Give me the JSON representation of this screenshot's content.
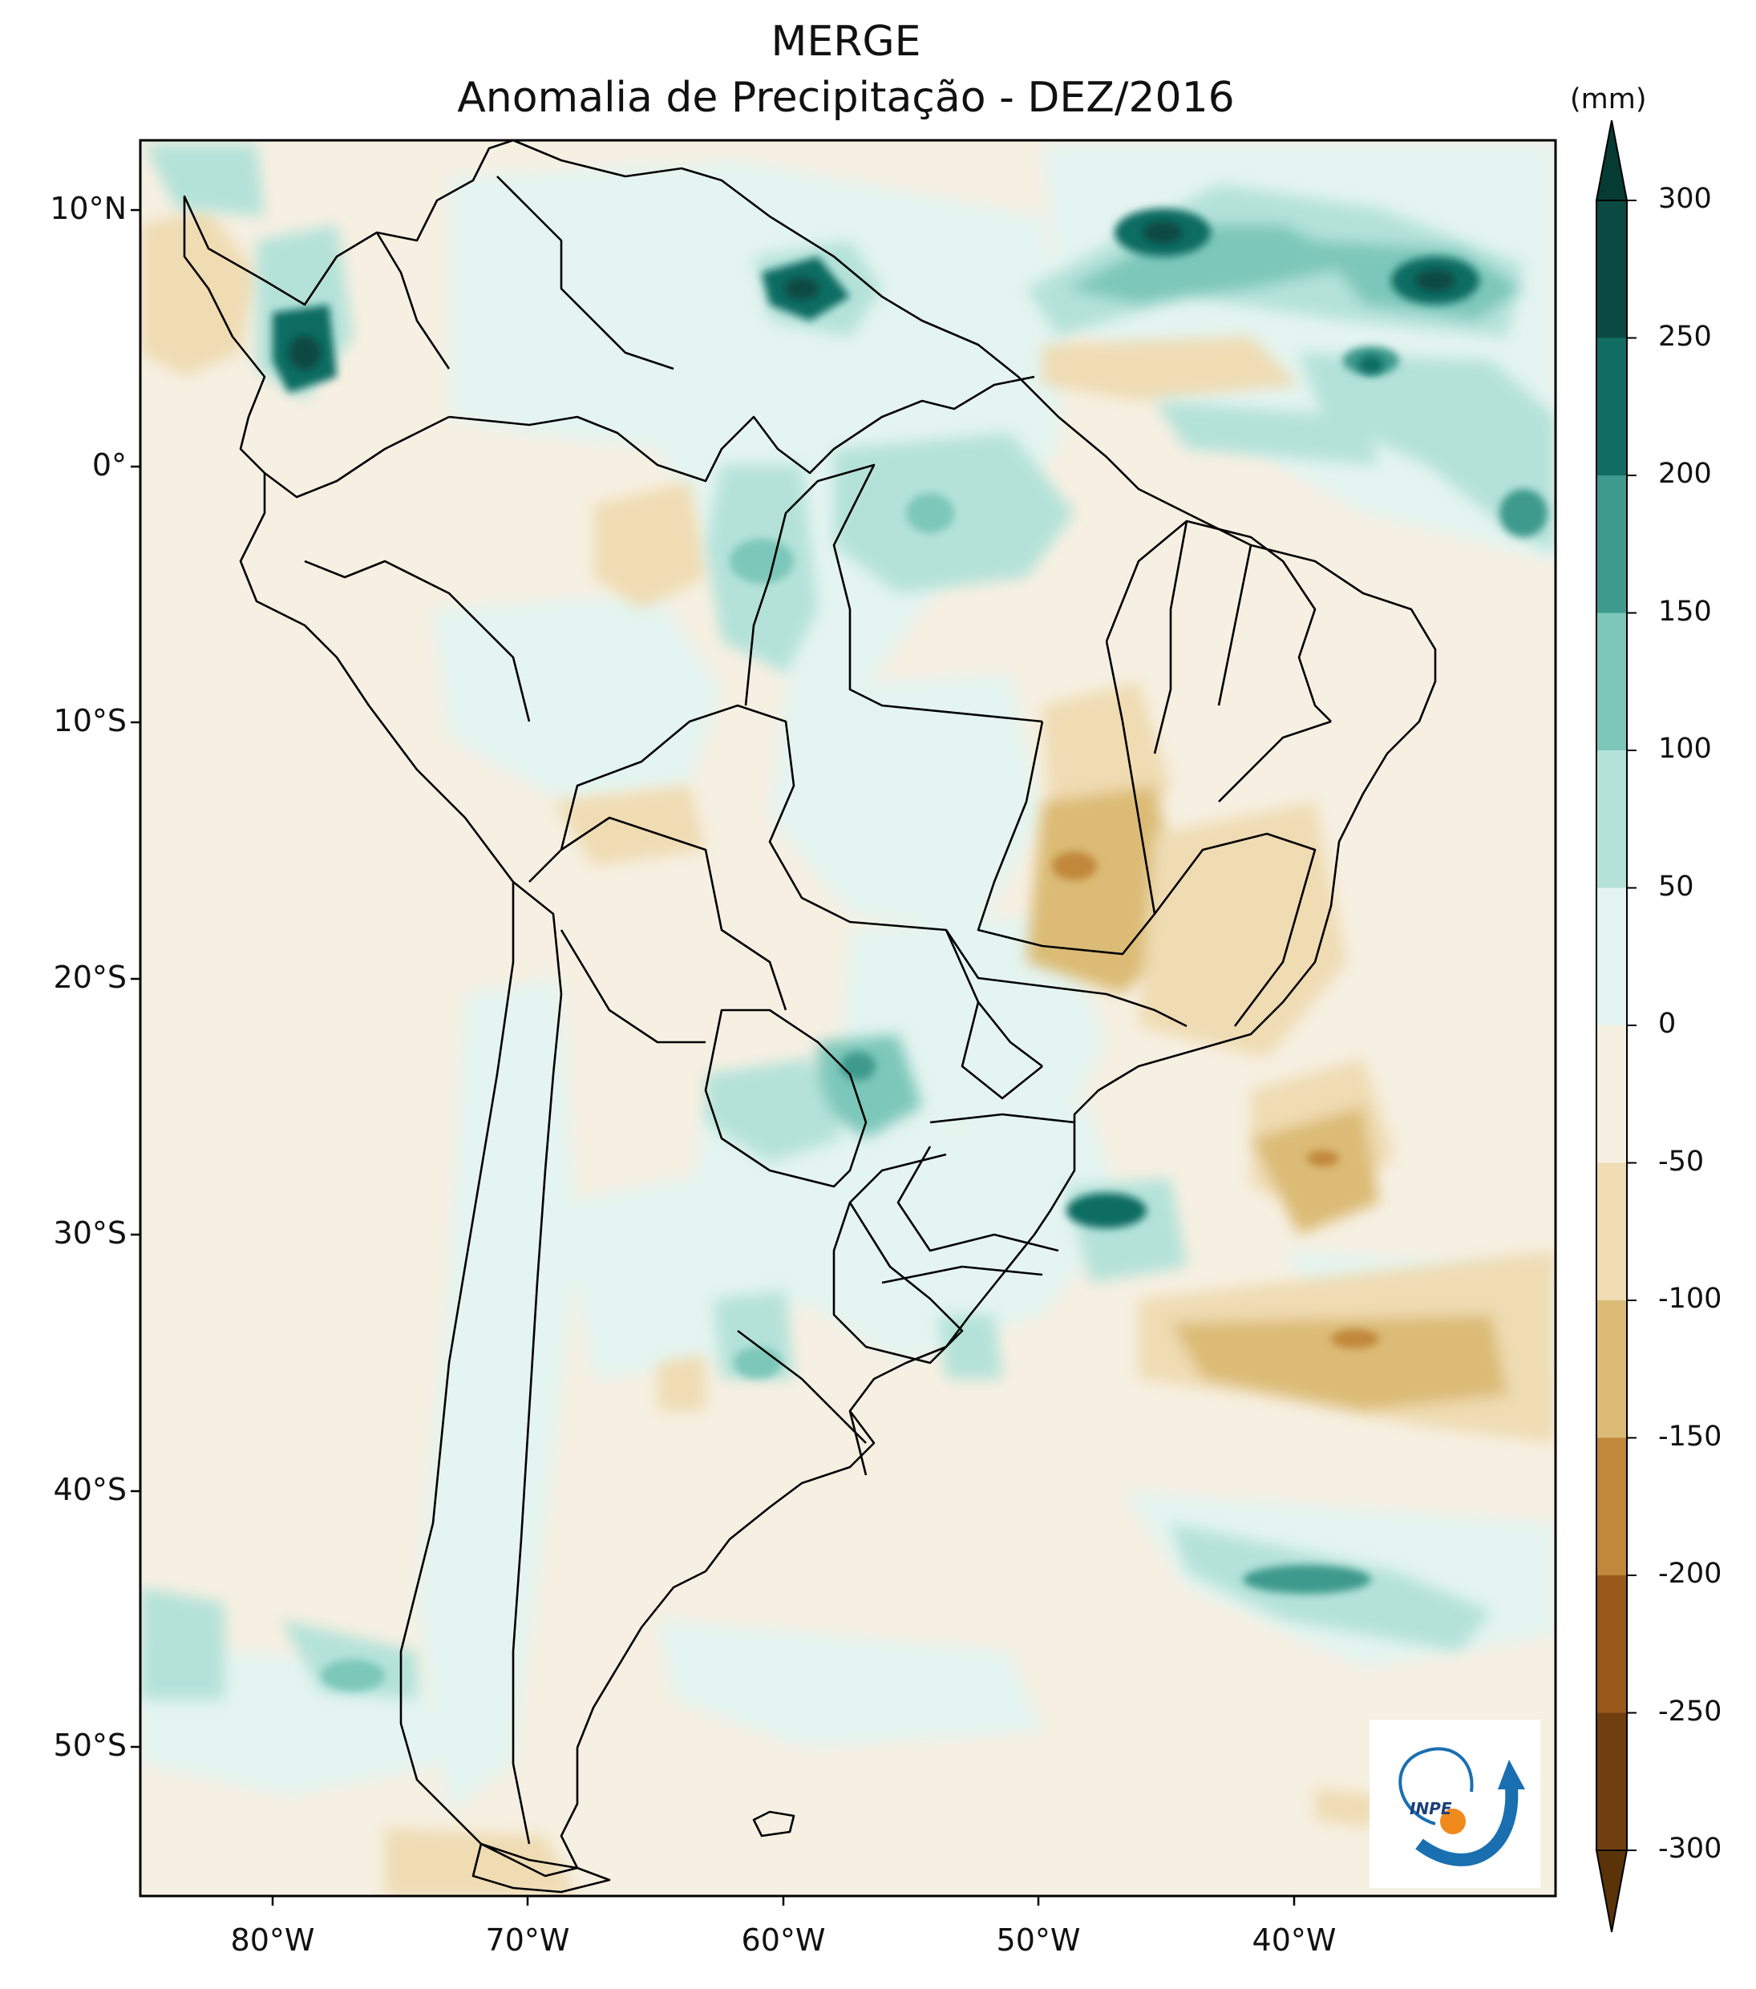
{
  "title": "MERGE",
  "subtitle": "Anomalia de Precipitação - DEZ/2016",
  "colorbar": {
    "unit": "(mm)",
    "levels": [
      "300",
      "250",
      "200",
      "150",
      "100",
      "50",
      "0",
      "-50",
      "-100",
      "-150",
      "-200",
      "-250",
      "-300"
    ],
    "colors_top_to_bottom": [
      "#0b4a42",
      "#116d64",
      "#3e9a8d",
      "#7cc7b9",
      "#b4e2d9",
      "#e4f4f0",
      "#f6f0e2",
      "#efdcb3",
      "#dbbb75",
      "#c1873b",
      "#98591a",
      "#703f10"
    ],
    "under_color": "#5a3308",
    "over_color": "#063b33"
  },
  "axes": {
    "lat_labels": [
      "10°N",
      "0°",
      "10°S",
      "20°S",
      "30°S",
      "40°S",
      "50°S"
    ],
    "lon_labels": [
      "80°W",
      "70°W",
      "60°W",
      "50°W",
      "40°W"
    ]
  },
  "logo": {
    "text": "INPE"
  },
  "colors": {
    "background": "#f6f0e2",
    "land_boundary": "#000000",
    "frame": "#000000"
  }
}
